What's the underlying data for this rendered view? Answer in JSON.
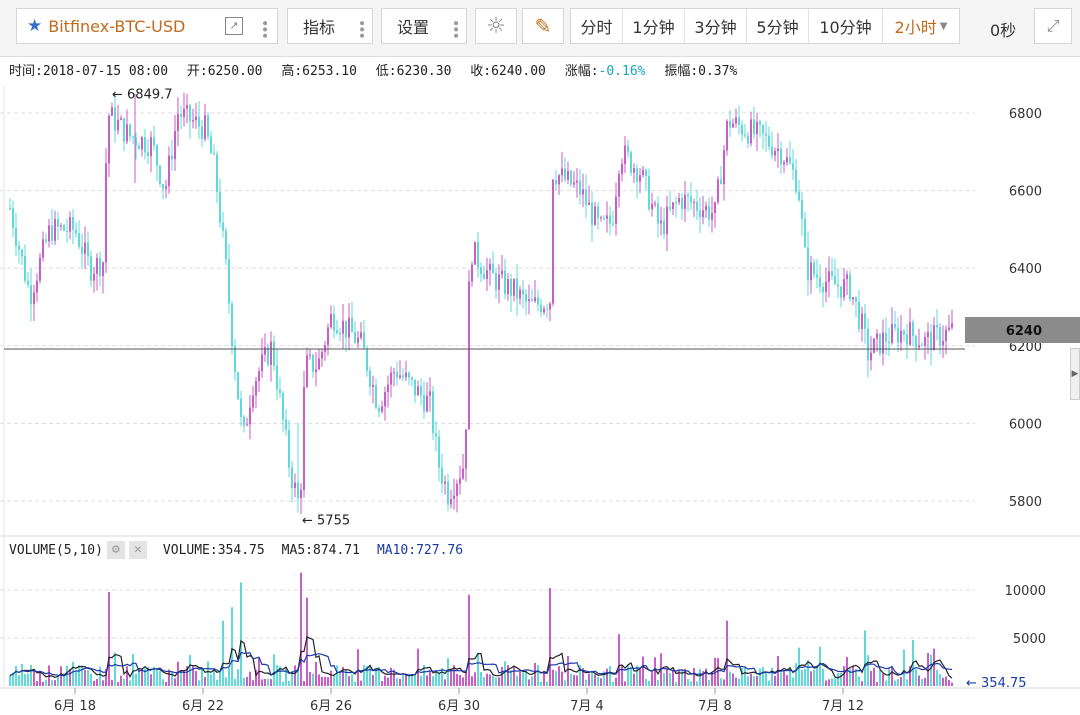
{
  "toolbar": {
    "symbol": "Bitfinex-BTC-USD",
    "indicators_label": "指标",
    "settings_label": "设置",
    "intervals": [
      "分时",
      "1分钟",
      "3分钟",
      "5分钟",
      "10分钟"
    ],
    "selected_interval": "2小时",
    "timer": "0秒"
  },
  "info": {
    "time": "时间:2018-07-15 08:00",
    "open": "开:6250.00",
    "high": "高:6253.10",
    "low": "低:6230.30",
    "close": "收:6240.00",
    "change_label": "涨幅:",
    "change_value": "-0.16%",
    "amplitude": "振幅:0.37%"
  },
  "volume_info": {
    "label": "VOLUME(5,10)",
    "volume": "VOLUME:354.75",
    "ma5": "MA5:874.71",
    "ma10": "MA10:727.76"
  },
  "colors": {
    "up": "#c95ec9",
    "down": "#5fd9d9",
    "ma5": "#222222",
    "ma10": "#1b3aa8",
    "accent": "#d97a1e"
  },
  "chart_data": [
    {
      "type": "candlestick",
      "title": "",
      "x_tick_labels": [
        "6月 18",
        "6月 22",
        "6月 26",
        "6月 30",
        "7月 4",
        "7月 8",
        "7月 12"
      ],
      "ylim": [
        5740,
        6880
      ],
      "y_ticks": [
        5800,
        6000,
        6200,
        6400,
        6600,
        6800
      ],
      "last_price": 6240,
      "annotations": [
        {
          "text": "6849.7",
          "value": 6849.7
        },
        {
          "text": "5755",
          "value": 5755
        }
      ],
      "close_path": [
        [
          6,
          6600
        ],
        [
          30,
          6330
        ],
        [
          50,
          6500
        ],
        [
          75,
          6500
        ],
        [
          90,
          6400
        ],
        [
          104,
          6420
        ],
        [
          107,
          6800
        ],
        [
          130,
          6740
        ],
        [
          152,
          6720
        ],
        [
          165,
          6600
        ],
        [
          178,
          6800
        ],
        [
          205,
          6760
        ],
        [
          215,
          6650
        ],
        [
          226,
          6400
        ],
        [
          233,
          6200
        ],
        [
          243,
          5950
        ],
        [
          252,
          6100
        ],
        [
          272,
          6200
        ],
        [
          290,
          5880
        ],
        [
          300,
          5780
        ],
        [
          305,
          6150
        ],
        [
          318,
          6150
        ],
        [
          332,
          6280
        ],
        [
          352,
          6230
        ],
        [
          362,
          6200
        ],
        [
          378,
          6050
        ],
        [
          395,
          6140
        ],
        [
          410,
          6100
        ],
        [
          430,
          6050
        ],
        [
          438,
          5900
        ],
        [
          448,
          5820
        ],
        [
          465,
          5900
        ],
        [
          470,
          6450
        ],
        [
          490,
          6380
        ],
        [
          515,
          6340
        ],
        [
          530,
          6300
        ],
        [
          550,
          6320
        ],
        [
          553,
          6650
        ],
        [
          580,
          6600
        ],
        [
          600,
          6500
        ],
        [
          612,
          6520
        ],
        [
          620,
          6700
        ],
        [
          640,
          6650
        ],
        [
          660,
          6500
        ],
        [
          680,
          6580
        ],
        [
          700,
          6560
        ],
        [
          715,
          6540
        ],
        [
          728,
          6780
        ],
        [
          760,
          6740
        ],
        [
          782,
          6700
        ],
        [
          798,
          6620
        ],
        [
          806,
          6400
        ],
        [
          830,
          6360
        ],
        [
          850,
          6350
        ],
        [
          862,
          6250
        ],
        [
          868,
          6180
        ],
        [
          885,
          6220
        ],
        [
          905,
          6240
        ],
        [
          925,
          6210
        ],
        [
          953,
          6240
        ]
      ]
    },
    {
      "type": "bar",
      "title": "Volume",
      "ylim": [
        0,
        13000
      ],
      "y_ticks": [
        5000,
        10000
      ],
      "last_value": 354.75,
      "last_value_label": "354.75",
      "spikes": [
        {
          "x": 108,
          "value": 9800
        },
        {
          "x": 222,
          "value": 6800
        },
        {
          "x": 232,
          "value": 8200
        },
        {
          "x": 242,
          "value": 10800
        },
        {
          "x": 300,
          "value": 11800
        },
        {
          "x": 306,
          "value": 9200
        },
        {
          "x": 468,
          "value": 9500
        },
        {
          "x": 551,
          "value": 10200
        },
        {
          "x": 620,
          "value": 5400
        },
        {
          "x": 726,
          "value": 6800
        },
        {
          "x": 866,
          "value": 5800
        },
        {
          "x": 912,
          "value": 4800
        }
      ]
    }
  ]
}
